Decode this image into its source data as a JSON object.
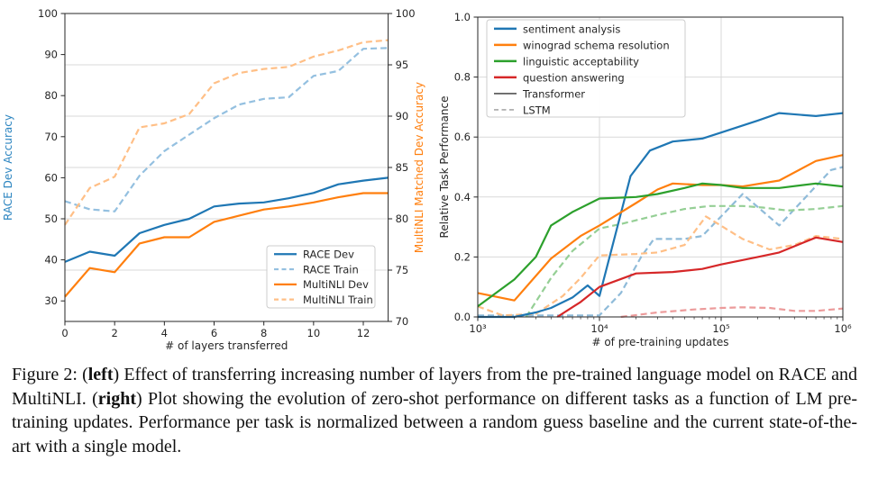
{
  "page": {
    "background": "#ffffff"
  },
  "caption": {
    "part1": "Figure 2: (",
    "bold_left": "left",
    "part2": ") Effect of transferring increasing number of layers from the pre-trained language model on RACE and MultiNLI. (",
    "bold_right": "right",
    "part3": ") Plot showing the evolution of zero-shot performance on different tasks as a function of LM pre-training updates. Performance per task is normalized between a random guess baseline and the current state-of-the-art with a single model."
  },
  "chart_data": [
    {
      "id": "layers-transfer",
      "type": "line",
      "xlabel": "# of layers transferred",
      "ylabel_left": "RACE Dev Accuracy",
      "ylabel_right": "MultiNLI Matched Dev Accuracy",
      "ylabel_left_color": "#2e86c1",
      "ylabel_right_color": "#ff7f0e",
      "xlim": [
        0,
        13
      ],
      "ylim_left": [
        25,
        100
      ],
      "ylim_right": [
        70,
        100
      ],
      "xticks": [
        0,
        2,
        4,
        6,
        8,
        10,
        12
      ],
      "yticks_left": [
        30,
        40,
        50,
        60,
        70,
        80,
        90,
        100
      ],
      "yticks_right": [
        70,
        75,
        80,
        85,
        90,
        95,
        100
      ],
      "gridlines_right_values": [
        75,
        80,
        85,
        90,
        95
      ],
      "grid_color": "#d9d9d9",
      "x": [
        0,
        1,
        2,
        3,
        4,
        5,
        6,
        7,
        8,
        9,
        10,
        11,
        12,
        13
      ],
      "series": [
        {
          "name": "RACE Dev",
          "axis": "left",
          "style": "solid",
          "color": "#1f77b4",
          "values": [
            39.5,
            42,
            41,
            46.5,
            48.5,
            50,
            53,
            53.7,
            54,
            55,
            56.3,
            58.4,
            59.3,
            60
          ]
        },
        {
          "name": "RACE Train",
          "axis": "left",
          "style": "dashed",
          "color": "#94c0e0",
          "values": [
            54.3,
            52.3,
            51.8,
            60.5,
            66.5,
            70.5,
            74.5,
            77.8,
            79.2,
            79.6,
            84.8,
            86,
            91.4,
            91.6
          ]
        },
        {
          "name": "MultiNLI Dev",
          "axis": "right",
          "style": "solid",
          "color": "#ff7f0e",
          "values": [
            72.4,
            75.2,
            74.8,
            77.6,
            78.2,
            78.2,
            79.7,
            80.3,
            80.9,
            81.2,
            81.6,
            82.1,
            82.5,
            82.5
          ]
        },
        {
          "name": "MultiNLI Train",
          "axis": "right",
          "style": "dashed",
          "color": "#ffbf86",
          "values": [
            79.4,
            83.0,
            84.1,
            88.9,
            89.3,
            90.2,
            93.2,
            94.2,
            94.6,
            94.8,
            95.8,
            96.4,
            97.2,
            97.4
          ]
        }
      ],
      "legend": {
        "position": "lower right",
        "entries": [
          {
            "label": "RACE Dev",
            "color": "#1f77b4",
            "style": "solid",
            "width": 2.2
          },
          {
            "label": "RACE Train",
            "color": "#94c0e0",
            "style": "dashed",
            "width": 2.2
          },
          {
            "label": "MultiNLI Dev",
            "color": "#ff7f0e",
            "style": "solid",
            "width": 2.2
          },
          {
            "label": "MultiNLI Train",
            "color": "#ffbf86",
            "style": "dashed",
            "width": 2.2
          }
        ]
      }
    },
    {
      "id": "zero-shot-pretraining",
      "type": "line",
      "xscale": "log",
      "xlabel": "# of pre-training updates",
      "ylabel": "Relative Task Performance",
      "ylabel_color": "#262626",
      "xlim": [
        1000,
        1000000
      ],
      "ylim": [
        0.0,
        1.0
      ],
      "xticks": [
        1000,
        10000,
        100000,
        1000000
      ],
      "xtick_labels": [
        "10³",
        "10⁴",
        "10⁵",
        "10⁶"
      ],
      "yticks": [
        0.0,
        0.2,
        0.4,
        0.6,
        0.8,
        1.0
      ],
      "ytick_labels": [
        "0.0",
        "0.2",
        "0.4",
        "0.6",
        "0.8",
        "1.0"
      ],
      "grid_color": "#d9d9d9",
      "grid_x_values": [
        10000,
        100000
      ],
      "grid_y_values": [
        0.2,
        0.4,
        0.6,
        0.8
      ],
      "series": [
        {
          "name": "sentiment analysis LSTM",
          "model": "LSTM",
          "style": "dashed",
          "color": "#8fbbd9",
          "points": [
            [
              1000,
              0.005
            ],
            [
              10000,
              0.005
            ],
            [
              15000,
              0.08
            ],
            [
              22000,
              0.2
            ],
            [
              28000,
              0.26
            ],
            [
              50000,
              0.26
            ],
            [
              70000,
              0.27
            ],
            [
              150000,
              0.41
            ],
            [
              300000,
              0.305
            ],
            [
              800000,
              0.49
            ],
            [
              1000000,
              0.5
            ]
          ]
        },
        {
          "name": "winograd schema resolution LSTM",
          "model": "LSTM",
          "style": "dashed",
          "color": "#ffbf86",
          "points": [
            [
              1000,
              0.035
            ],
            [
              1600,
              0.005
            ],
            [
              3000,
              0.01
            ],
            [
              5000,
              0.07
            ],
            [
              7000,
              0.13
            ],
            [
              10000,
              0.205
            ],
            [
              20000,
              0.21
            ],
            [
              30000,
              0.215
            ],
            [
              50000,
              0.24
            ],
            [
              75000,
              0.335
            ],
            [
              150000,
              0.26
            ],
            [
              250000,
              0.225
            ],
            [
              400000,
              0.24
            ],
            [
              600000,
              0.27
            ],
            [
              1000000,
              0.26
            ]
          ]
        },
        {
          "name": "linguistic acceptability LSTM",
          "model": "LSTM",
          "style": "dashed",
          "color": "#95cf95",
          "points": [
            [
              2500,
              0
            ],
            [
              4000,
              0.13
            ],
            [
              6000,
              0.22
            ],
            [
              10000,
              0.295
            ],
            [
              15000,
              0.31
            ],
            [
              30000,
              0.34
            ],
            [
              50000,
              0.36
            ],
            [
              80000,
              0.37
            ],
            [
              150000,
              0.37
            ],
            [
              220000,
              0.365
            ],
            [
              350000,
              0.355
            ],
            [
              600000,
              0.36
            ],
            [
              1000000,
              0.37
            ]
          ]
        },
        {
          "name": "question answering LSTM",
          "model": "LSTM",
          "style": "dashed",
          "color": "#ec9b9b",
          "points": [
            [
              15000,
              0
            ],
            [
              30000,
              0.015
            ],
            [
              60000,
              0.025
            ],
            [
              100000,
              0.03
            ],
            [
              150000,
              0.032
            ],
            [
              250000,
              0.03
            ],
            [
              400000,
              0.02
            ],
            [
              600000,
              0.02
            ],
            [
              1000000,
              0.028
            ]
          ]
        },
        {
          "name": "sentiment analysis",
          "model": "Transformer",
          "style": "solid",
          "color": "#1f77b4",
          "points": [
            [
              1000,
              0
            ],
            [
              2000,
              0
            ],
            [
              3000,
              0.015
            ],
            [
              4000,
              0.03
            ],
            [
              6000,
              0.065
            ],
            [
              8000,
              0.105
            ],
            [
              10000,
              0.07
            ],
            [
              18000,
              0.47
            ],
            [
              26000,
              0.555
            ],
            [
              40000,
              0.585
            ],
            [
              70000,
              0.595
            ],
            [
              100000,
              0.615
            ],
            [
              200000,
              0.655
            ],
            [
              300000,
              0.68
            ],
            [
              600000,
              0.67
            ],
            [
              1000000,
              0.68
            ]
          ]
        },
        {
          "name": "winograd schema resolution",
          "model": "Transformer",
          "style": "solid",
          "color": "#ff7f0e",
          "points": [
            [
              1000,
              0.08
            ],
            [
              2000,
              0.055
            ],
            [
              4000,
              0.195
            ],
            [
              7000,
              0.27
            ],
            [
              10000,
              0.305
            ],
            [
              20000,
              0.38
            ],
            [
              30000,
              0.425
            ],
            [
              40000,
              0.445
            ],
            [
              70000,
              0.44
            ],
            [
              100000,
              0.44
            ],
            [
              150000,
              0.435
            ],
            [
              300000,
              0.455
            ],
            [
              600000,
              0.52
            ],
            [
              1000000,
              0.54
            ]
          ]
        },
        {
          "name": "linguistic acceptability",
          "model": "Transformer",
          "style": "solid",
          "color": "#2ca02c",
          "points": [
            [
              1000,
              0.035
            ],
            [
              2000,
              0.125
            ],
            [
              3000,
              0.2
            ],
            [
              4000,
              0.305
            ],
            [
              6000,
              0.35
            ],
            [
              10000,
              0.395
            ],
            [
              20000,
              0.4
            ],
            [
              30000,
              0.41
            ],
            [
              50000,
              0.43
            ],
            [
              70000,
              0.445
            ],
            [
              100000,
              0.44
            ],
            [
              150000,
              0.43
            ],
            [
              300000,
              0.43
            ],
            [
              600000,
              0.445
            ],
            [
              1000000,
              0.435
            ]
          ]
        },
        {
          "name": "question answering",
          "model": "Transformer",
          "style": "solid",
          "color": "#d62728",
          "points": [
            [
              4500,
              0
            ],
            [
              7000,
              0.05
            ],
            [
              10000,
              0.1
            ],
            [
              20000,
              0.145
            ],
            [
              40000,
              0.15
            ],
            [
              70000,
              0.16
            ],
            [
              100000,
              0.175
            ],
            [
              200000,
              0.2
            ],
            [
              300000,
              0.215
            ],
            [
              600000,
              0.265
            ],
            [
              1000000,
              0.25
            ]
          ]
        }
      ],
      "legend": {
        "position": "upper left",
        "entries": [
          {
            "label": "sentiment analysis",
            "color": "#1f77b4",
            "style": "solid",
            "width": 2.5
          },
          {
            "label": "winograd schema resolution",
            "color": "#ff7f0e",
            "style": "solid",
            "width": 2.5
          },
          {
            "label": "linguistic acceptability",
            "color": "#2ca02c",
            "style": "solid",
            "width": 2.5
          },
          {
            "label": "question answering",
            "color": "#d62728",
            "style": "solid",
            "width": 2.5
          },
          {
            "label": "Transformer",
            "color": "#333333",
            "style": "solid",
            "width": 1.4
          },
          {
            "label": "LSTM",
            "color": "#999999",
            "style": "dashed",
            "width": 1.4
          }
        ]
      }
    }
  ]
}
